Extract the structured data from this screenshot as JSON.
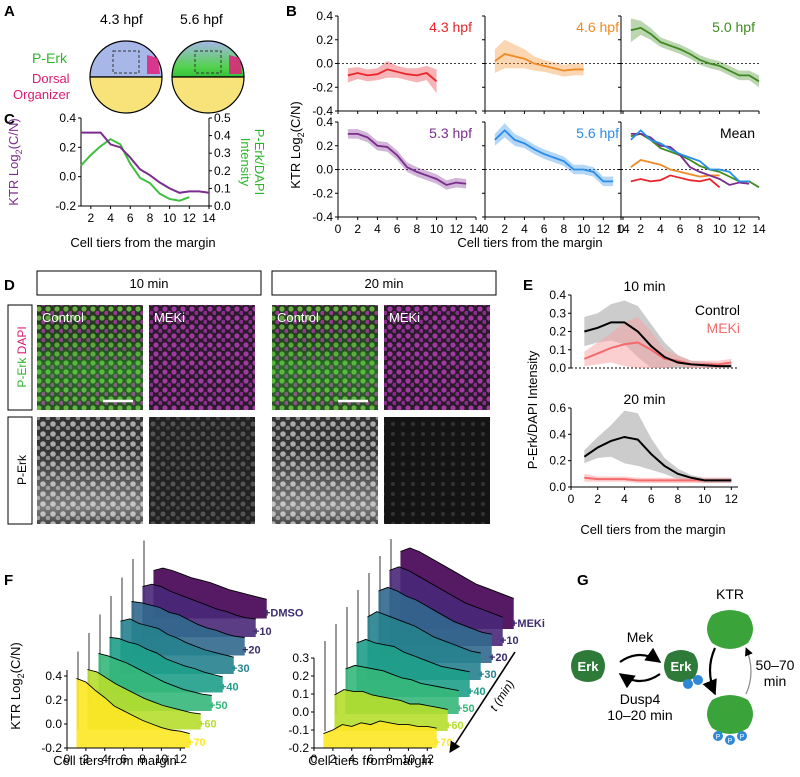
{
  "panels": {
    "A": "A",
    "B": "B",
    "C": "C",
    "D": "D",
    "E": "E",
    "F": "F",
    "G": "G"
  },
  "panel_a": {
    "times": [
      "4.3 hpf",
      "5.6 hpf"
    ],
    "label_perk": "P-Erk",
    "label_dorsal": "Dorsal",
    "label_organizer": "Organizer"
  },
  "chart_data": [
    {
      "id": "B",
      "type": "line",
      "ylabel": "KTR Log2(C/N)",
      "xlabel": "Cell tiers from the margin",
      "xlim": [
        0,
        14
      ],
      "ylim": [
        -0.4,
        0.4
      ],
      "xticks": [
        0,
        2,
        4,
        6,
        8,
        10,
        12,
        14
      ],
      "yticks": [
        -0.4,
        -0.2,
        0.0,
        0.2,
        0.4
      ],
      "series": [
        {
          "name": "4.3 hpf",
          "color": "#e8262b",
          "x": [
            1,
            2,
            3,
            4,
            5,
            6,
            7,
            8,
            9,
            10
          ],
          "y": [
            -0.1,
            -0.08,
            -0.1,
            -0.09,
            -0.05,
            -0.07,
            -0.09,
            -0.1,
            -0.08,
            -0.15
          ],
          "err": [
            0.06,
            0.05,
            0.05,
            0.05,
            0.07,
            0.05,
            0.05,
            0.06,
            0.06,
            0.1
          ]
        },
        {
          "name": "4.6 hpf",
          "color": "#f08a24",
          "x": [
            1,
            2,
            3,
            4,
            5,
            6,
            7,
            8,
            9,
            10
          ],
          "y": [
            0.02,
            0.08,
            0.06,
            0.04,
            0.0,
            -0.02,
            -0.04,
            -0.06,
            -0.05,
            -0.05
          ],
          "err": [
            0.1,
            0.12,
            0.1,
            0.08,
            0.06,
            0.05,
            0.05,
            0.05,
            0.05,
            0.05
          ]
        },
        {
          "name": "5.0 hpf",
          "color": "#3e8a20",
          "x": [
            1,
            2,
            3,
            4,
            5,
            6,
            7,
            8,
            9,
            10,
            11,
            12,
            13,
            14
          ],
          "y": [
            0.28,
            0.3,
            0.25,
            0.18,
            0.15,
            0.12,
            0.08,
            0.03,
            0.0,
            -0.02,
            -0.06,
            -0.1,
            -0.1,
            -0.15
          ],
          "err": [
            0.1,
            0.06,
            0.05,
            0.04,
            0.04,
            0.04,
            0.04,
            0.04,
            0.04,
            0.04,
            0.04,
            0.04,
            0.04,
            0.05
          ]
        },
        {
          "name": "5.3 hpf",
          "color": "#7b2d8e",
          "x": [
            1,
            2,
            3,
            4,
            5,
            6,
            7,
            8,
            9,
            10,
            11,
            12,
            13
          ],
          "y": [
            0.3,
            0.3,
            0.27,
            0.2,
            0.19,
            0.12,
            0.02,
            -0.02,
            -0.05,
            -0.08,
            -0.13,
            -0.11,
            -0.12
          ],
          "err": [
            0.04,
            0.04,
            0.04,
            0.04,
            0.04,
            0.04,
            0.04,
            0.04,
            0.04,
            0.04,
            0.04,
            0.04,
            0.04
          ]
        },
        {
          "name": "5.6 hpf",
          "color": "#2a8de8",
          "x": [
            1,
            2,
            3,
            4,
            5,
            6,
            7,
            8,
            9,
            10,
            11,
            12,
            13
          ],
          "y": [
            0.25,
            0.33,
            0.25,
            0.22,
            0.17,
            0.13,
            0.1,
            0.07,
            0.0,
            0.0,
            -0.02,
            -0.1,
            -0.1
          ],
          "err": [
            0.05,
            0.06,
            0.05,
            0.04,
            0.04,
            0.04,
            0.04,
            0.04,
            0.04,
            0.04,
            0.04,
            0.04,
            0.04
          ]
        }
      ],
      "mean_label": "Mean"
    },
    {
      "id": "C",
      "type": "line",
      "xlabel": "Cell tiers from the margin",
      "ylabel_left": "KTR Log2(C/N)",
      "ylabel_right_1": "P-Erk/DAPI",
      "ylabel_right_2": "Intensity",
      "xticks": [
        2,
        4,
        6,
        8,
        10,
        12,
        14
      ],
      "xlim": [
        1,
        14
      ],
      "ylim_left": [
        -0.2,
        0.4
      ],
      "yticks_left": [
        -0.2,
        0.0,
        0.2,
        0.4
      ],
      "ylim_right": [
        0.0,
        0.5
      ],
      "yticks_right": [
        0.0,
        0.1,
        0.2,
        0.3,
        0.4,
        0.5
      ],
      "ktr": {
        "color": "#7b2d8e",
        "x": [
          1,
          2,
          3,
          4,
          5,
          6,
          7,
          8,
          9,
          10,
          11,
          12,
          13,
          14
        ],
        "y": [
          0.3,
          0.3,
          0.3,
          0.22,
          0.2,
          0.13,
          0.05,
          0.01,
          -0.04,
          -0.08,
          -0.11,
          -0.1,
          -0.1,
          -0.11
        ]
      },
      "perk": {
        "color": "#3fbf3f",
        "x": [
          1,
          2,
          3,
          4,
          5,
          6,
          7,
          8,
          9,
          10,
          11,
          12
        ],
        "y": [
          0.23,
          0.29,
          0.34,
          0.38,
          0.35,
          0.24,
          0.16,
          0.13,
          0.07,
          0.04,
          0.03,
          0.05
        ]
      }
    },
    {
      "id": "E",
      "type": "line",
      "ylabel": "P-Erk/DAPI Intensity",
      "xlabel": "Cell tiers from the margin",
      "xticks": [
        0,
        2,
        4,
        6,
        8,
        10,
        12
      ],
      "xlim": [
        0,
        12.5
      ],
      "legend": [
        "Control",
        "MEKi"
      ],
      "subplots": [
        {
          "title": "10 min",
          "ylim": [
            0,
            0.4
          ],
          "yticks": [
            0.0,
            0.1,
            0.2,
            0.3,
            0.4
          ],
          "control": {
            "color": "#000000",
            "x": [
              1,
              2,
              3,
              4,
              5,
              6,
              7,
              8,
              9,
              10,
              11,
              12
            ],
            "y": [
              0.2,
              0.22,
              0.25,
              0.25,
              0.2,
              0.12,
              0.06,
              0.03,
              0.02,
              0.015,
              0.01,
              0.01
            ],
            "err": [
              0.08,
              0.08,
              0.1,
              0.12,
              0.14,
              0.12,
              0.08,
              0.04,
              0.02,
              0.02,
              0.015,
              0.015
            ]
          },
          "meki": {
            "color": "#f46b6b",
            "x": [
              1,
              2,
              3,
              4,
              5,
              6,
              7,
              8,
              9,
              10,
              11,
              12
            ],
            "y": [
              0.05,
              0.08,
              0.11,
              0.13,
              0.14,
              0.1,
              0.05,
              0.04,
              0.02,
              0.02,
              0.02,
              0.03
            ],
            "err": [
              0.04,
              0.06,
              0.08,
              0.12,
              0.14,
              0.1,
              0.05,
              0.03,
              0.02,
              0.02,
              0.02,
              0.02
            ]
          }
        },
        {
          "title": "20 min",
          "ylim": [
            0,
            0.6
          ],
          "yticks": [
            0.0,
            0.2,
            0.4,
            0.6
          ],
          "control": {
            "color": "#000000",
            "x": [
              1,
              2,
              3,
              4,
              5,
              6,
              7,
              8,
              9,
              10,
              11,
              12
            ],
            "y": [
              0.23,
              0.3,
              0.35,
              0.38,
              0.36,
              0.25,
              0.16,
              0.1,
              0.07,
              0.05,
              0.05,
              0.05
            ],
            "err": [
              0.05,
              0.08,
              0.12,
              0.2,
              0.2,
              0.12,
              0.06,
              0.04,
              0.02,
              0.02,
              0.02,
              0.02
            ]
          },
          "meki": {
            "color": "#f46b6b",
            "x": [
              1,
              2,
              3,
              4,
              5,
              6,
              7,
              8,
              9,
              10,
              11,
              12
            ],
            "y": [
              0.07,
              0.06,
              0.06,
              0.06,
              0.05,
              0.05,
              0.05,
              0.05,
              0.05,
              0.05,
              0.05,
              0.05
            ],
            "err": [
              0.03,
              0.02,
              0.02,
              0.02,
              0.02,
              0.02,
              0.02,
              0.02,
              0.02,
              0.02,
              0.02,
              0.02
            ]
          }
        }
      ]
    },
    {
      "id": "F",
      "type": "area",
      "ylabel": "KTR Log2(C/N)",
      "xlabel": "Cell tiers from margin",
      "xticks": [
        0,
        2,
        4,
        6,
        8,
        10,
        12
      ],
      "time_axis_label": "t (min)",
      "stacks": [
        {
          "label_top": "+DMSO",
          "yticks": [
            -0.2,
            0.0,
            0.2,
            0.4
          ],
          "ylim": [
            -0.2,
            0.45
          ],
          "traces": [
            {
              "label": "+70",
              "y": [
                0.38,
                0.35,
                0.28,
                0.22,
                0.15,
                0.11,
                0.07,
                0.03,
                0.0,
                -0.03,
                -0.05,
                -0.06,
                -0.08
              ]
            },
            {
              "label": "+60",
              "y": [
                0.3,
                0.28,
                0.23,
                0.18,
                0.14,
                0.1,
                0.06,
                0.03,
                0.0,
                -0.02,
                -0.04,
                -0.06,
                -0.07
              ]
            },
            {
              "label": "+50",
              "y": [
                0.28,
                0.26,
                0.23,
                0.2,
                0.16,
                0.12,
                0.08,
                0.04,
                0.01,
                -0.02,
                -0.04,
                -0.06,
                -0.07
              ]
            },
            {
              "label": "+40",
              "y": [
                0.26,
                0.25,
                0.22,
                0.2,
                0.16,
                0.13,
                0.08,
                0.05,
                0.02,
                0.0,
                -0.03,
                -0.05,
                -0.07
              ]
            },
            {
              "label": "+30",
              "y": [
                0.24,
                0.26,
                0.22,
                0.2,
                0.18,
                0.13,
                0.1,
                0.06,
                0.03,
                0.0,
                -0.02,
                -0.04,
                -0.06
              ]
            },
            {
              "label": "+20",
              "y": [
                0.25,
                0.24,
                0.22,
                0.2,
                0.16,
                0.14,
                0.1,
                0.06,
                0.03,
                0.01,
                -0.02,
                -0.04,
                -0.05
              ]
            },
            {
              "label": "+10",
              "y": [
                0.22,
                0.24,
                0.22,
                0.18,
                0.15,
                0.12,
                0.09,
                0.06,
                0.03,
                0.01,
                -0.02,
                -0.04,
                -0.05
              ]
            },
            {
              "label": "+DMSO",
              "y": [
                0.2,
                0.22,
                0.2,
                0.17,
                0.14,
                0.12,
                0.1,
                0.07,
                0.04,
                0.02,
                0.0,
                -0.02,
                -0.04
              ]
            }
          ]
        },
        {
          "label_top": "+MEKi",
          "yticks": [
            -0.2,
            -0.1,
            0.0,
            0.1,
            0.2,
            0.3
          ],
          "ylim": [
            -0.2,
            0.3
          ],
          "traces": [
            {
              "label": "+70",
              "y": [
                -0.12,
                -0.1,
                -0.07,
                -0.08,
                -0.06,
                -0.07,
                -0.05,
                -0.06,
                -0.07,
                -0.07,
                -0.08,
                -0.08,
                -0.09
              ]
            },
            {
              "label": "+60",
              "y": [
                0.0,
                0.03,
                0.02,
                0.02,
                0.0,
                -0.01,
                -0.02,
                -0.03,
                -0.05,
                -0.05,
                -0.06,
                -0.07,
                -0.08
              ]
            },
            {
              "label": "+50",
              "y": [
                0.05,
                0.07,
                0.06,
                0.05,
                0.04,
                0.02,
                0.0,
                -0.01,
                -0.03,
                -0.04,
                -0.05,
                -0.06,
                -0.07
              ]
            },
            {
              "label": "+40",
              "y": [
                0.1,
                0.12,
                0.1,
                0.09,
                0.08,
                0.05,
                0.03,
                0.01,
                -0.01,
                -0.03,
                -0.04,
                -0.05,
                -0.06
              ]
            },
            {
              "label": "+30",
              "y": [
                0.15,
                0.18,
                0.16,
                0.14,
                0.12,
                0.1,
                0.07,
                0.04,
                0.02,
                0.0,
                -0.02,
                -0.04,
                -0.05
              ]
            },
            {
              "label": "+20",
              "y": [
                0.2,
                0.22,
                0.2,
                0.17,
                0.15,
                0.12,
                0.09,
                0.06,
                0.03,
                0.01,
                -0.01,
                -0.03,
                -0.04
              ]
            },
            {
              "label": "+10",
              "y": [
                0.22,
                0.24,
                0.22,
                0.19,
                0.16,
                0.13,
                0.1,
                0.07,
                0.04,
                0.02,
                0.0,
                -0.02,
                -0.04
              ]
            },
            {
              "label": "+MEKi",
              "y": [
                0.23,
                0.25,
                0.23,
                0.2,
                0.17,
                0.14,
                0.11,
                0.08,
                0.05,
                0.03,
                0.01,
                -0.01,
                -0.03
              ]
            }
          ]
        }
      ],
      "colors": [
        "#fde725",
        "#b5de2b",
        "#6ece58",
        "#35b779",
        "#1f9e89",
        "#26828e",
        "#31688e",
        "#3e4989",
        "#482878",
        "#440154"
      ]
    }
  ],
  "panel_d": {
    "times": [
      "10 min",
      "20 min"
    ],
    "conditions": [
      "Control",
      "MEKi",
      "Control",
      "MEKi"
    ],
    "row_label_1a": "P-Erk",
    "row_label_1b": "DAPI",
    "row_label_2": "P-Erk"
  },
  "panel_g": {
    "erk": "Erk",
    "ktr": "KTR",
    "mek": "Mek",
    "dusp4": "Dusp4",
    "fast_time": "10–20 min",
    "slow_time_1": "50–70",
    "slow_time_2": "min",
    "phospho": "P",
    "colors": {
      "erk": "#2e7a38",
      "ktr": "#3aa33a",
      "phospho": "#2f88d6"
    }
  }
}
